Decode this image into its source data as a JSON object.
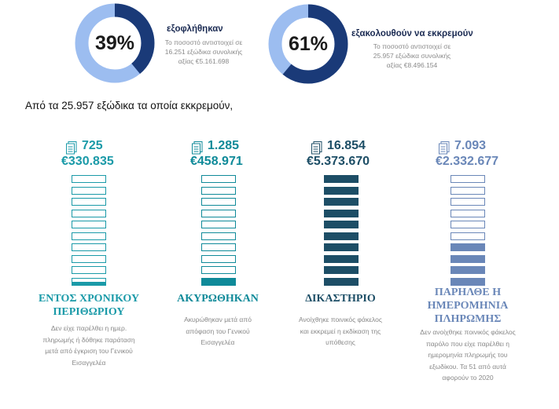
{
  "donuts": [
    {
      "pct": "39%",
      "fraction": 0.39,
      "title": "εξοφλήθηκαν",
      "desc": [
        "Το ποσοστό αντιστοιχεί σε",
        "16.251 εξώδικα συνολικής",
        "αξίας €5.161.698"
      ]
    },
    {
      "pct": "61%",
      "fraction": 0.61,
      "title": "εξακολουθούν να εκκρεμούν",
      "desc": [
        "Το ποσοστό αντιστοιχεί σε",
        "25.957 εξώδικα συνολικής",
        "αξίας €8.496.154"
      ]
    }
  ],
  "intro": "Από τα 25.957 εξώδικα τα οποία εκκρεμούν,",
  "columns": [
    {
      "count": "725",
      "amount": "€330.835",
      "color": "#1a9aa8",
      "filled": 1,
      "filled_fraction_of_last": 0.5,
      "category": [
        "ΕΝΤΟΣ ΧΡΟΝΙΚΟΥ",
        "ΠΕΡΙΘΩΡΙΟΥ"
      ],
      "desc": [
        "Δεν είχε παρέλθει η ημερ.",
        "πληρωμής ή δόθηκε παράταση",
        "μετά από έγκριση του Γενικού",
        "Εισαγγελέα"
      ]
    },
    {
      "count": "1.285",
      "amount": "€458.971",
      "color": "#0f8a99",
      "filled": 1,
      "filled_fraction_of_last": 1,
      "category": [
        "ΑΚΥΡΩΘΗΚΑΝ"
      ],
      "desc": [
        "Ακυρώθηκαν μετά από",
        "απόφαση του Γενικού",
        "Εισαγγελέα"
      ]
    },
    {
      "count": "16.854",
      "amount": "€5.373.670",
      "color": "#1d4e66",
      "filled": 10,
      "filled_fraction_of_last": 1,
      "category": [
        "ΔΙΚΑΣΤΗΡΙΟ"
      ],
      "desc": [
        "Ανοίχθηκε ποινικός φάκελος",
        "και εκκρεμεί η εκδίκαση της",
        "υπόθεσης"
      ]
    },
    {
      "count": "7.093",
      "amount": "€2.332.677",
      "color": "#6a87b8",
      "filled": 4,
      "filled_fraction_of_last": 1,
      "category": [
        "ΠΑΡΗΛΘΕ Η",
        "ΗΜΕΡΟΜΗΝΙΑ",
        "ΠΛΗΡΩΜΗΣ"
      ],
      "desc": [
        "Δεν ανοίχθηκε ποινικός φάκελος",
        "παρόλο που είχε παρέλθει η",
        "ημερομηνία πληρωμής του",
        "εξωδίκου. Τα 51 από αυτά",
        "αφορούν το 2020"
      ]
    }
  ],
  "colors": {
    "donut_dark": "#1a3a78",
    "donut_light": "#9cbdf0",
    "count_teal": "#1a9aa8",
    "navy": "#1d4e66",
    "slate": "#6a87b8"
  }
}
